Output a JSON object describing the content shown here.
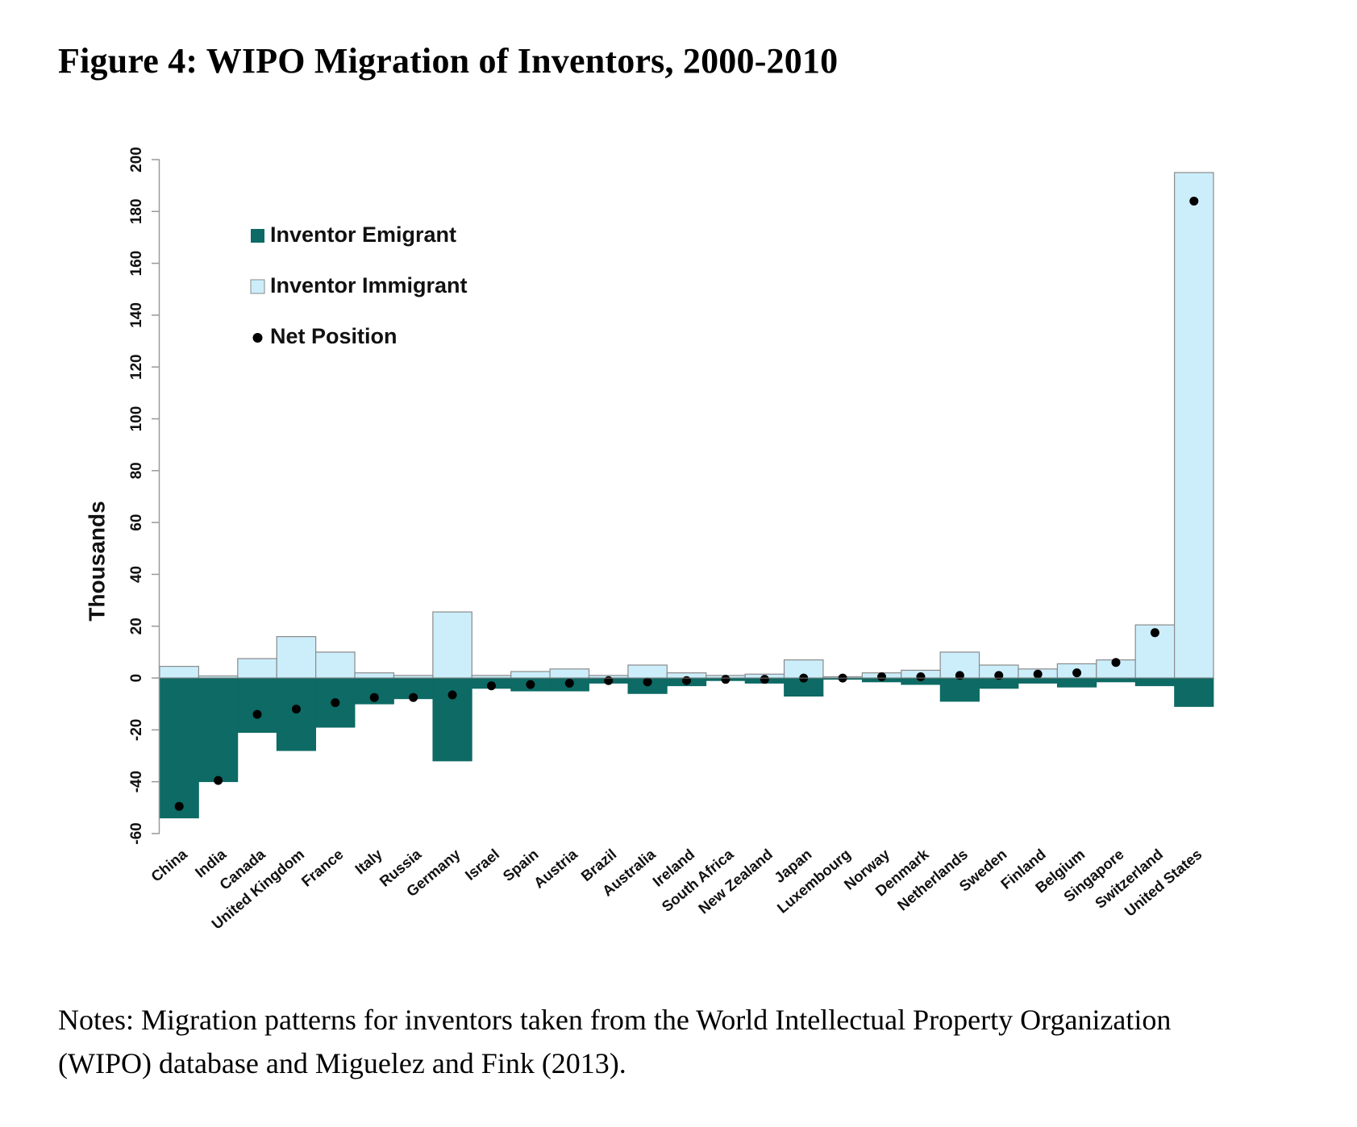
{
  "figure": {
    "title": "Figure 4: WIPO Migration of Inventors, 2000-2010",
    "notes_line1": "Notes: Migration patterns for inventors taken from the World Intellectual Property Organization",
    "notes_line2": "(WIPO) database and Miguelez and Fink (2013)."
  },
  "colors": {
    "emigrant": "#0d6a64",
    "immigrant": "#cceefb",
    "net": "#000000",
    "bar_stroke": "#8a8a8a",
    "axis": "#999999"
  },
  "chart_data": {
    "type": "bar",
    "title": "",
    "xlabel": "",
    "ylabel": "Thousands",
    "ylim": [
      -60,
      200
    ],
    "yticks": [
      "-60",
      "-40",
      "-20",
      "0",
      "20",
      "40",
      "60",
      "80",
      "100",
      "120",
      "140",
      "160",
      "180",
      "200"
    ],
    "legend_position": "top-left",
    "grid": false,
    "categories": [
      "China",
      "India",
      "Canada",
      "United Kingdom",
      "France",
      "Italy",
      "Russia",
      "Germany",
      "Israel",
      "Spain",
      "Austria",
      "Brazil",
      "Australia",
      "Ireland",
      "South Africa",
      "New Zealand",
      "Japan",
      "Luxembourg",
      "Norway",
      "Denmark",
      "Netherlands",
      "Sweden",
      "Finland",
      "Belgium",
      "Singapore",
      "Switzerland",
      "United States"
    ],
    "series": [
      {
        "name": "Inventor Emigrant",
        "values": [
          -54,
          -40,
          -21,
          -28,
          -19,
          -10,
          -8,
          -32,
          -4,
          -5,
          -5,
          -2,
          -6,
          -3,
          -1,
          -2,
          -7,
          -0.5,
          -1.5,
          -2.5,
          -9,
          -4,
          -2,
          -3.5,
          -1.5,
          -3,
          -11
        ]
      },
      {
        "name": "Inventor Immigrant",
        "values": [
          4.5,
          0.8,
          7.5,
          16,
          10,
          2,
          1,
          25.5,
          1,
          2.5,
          3.5,
          1,
          5,
          2,
          1,
          1.5,
          7,
          0.5,
          2,
          3,
          10,
          5,
          3.5,
          5.5,
          7,
          20.5,
          195
        ]
      },
      {
        "name": "Net Position",
        "values": [
          -49.5,
          -39.5,
          -14,
          -12,
          -9.5,
          -7.5,
          -7.5,
          -6.5,
          -3,
          -2.5,
          -2,
          -1,
          -1.5,
          -1,
          -0.5,
          -0.5,
          0,
          0,
          0.5,
          0.5,
          1,
          1,
          1.5,
          2,
          6,
          17.5,
          184
        ]
      }
    ]
  }
}
